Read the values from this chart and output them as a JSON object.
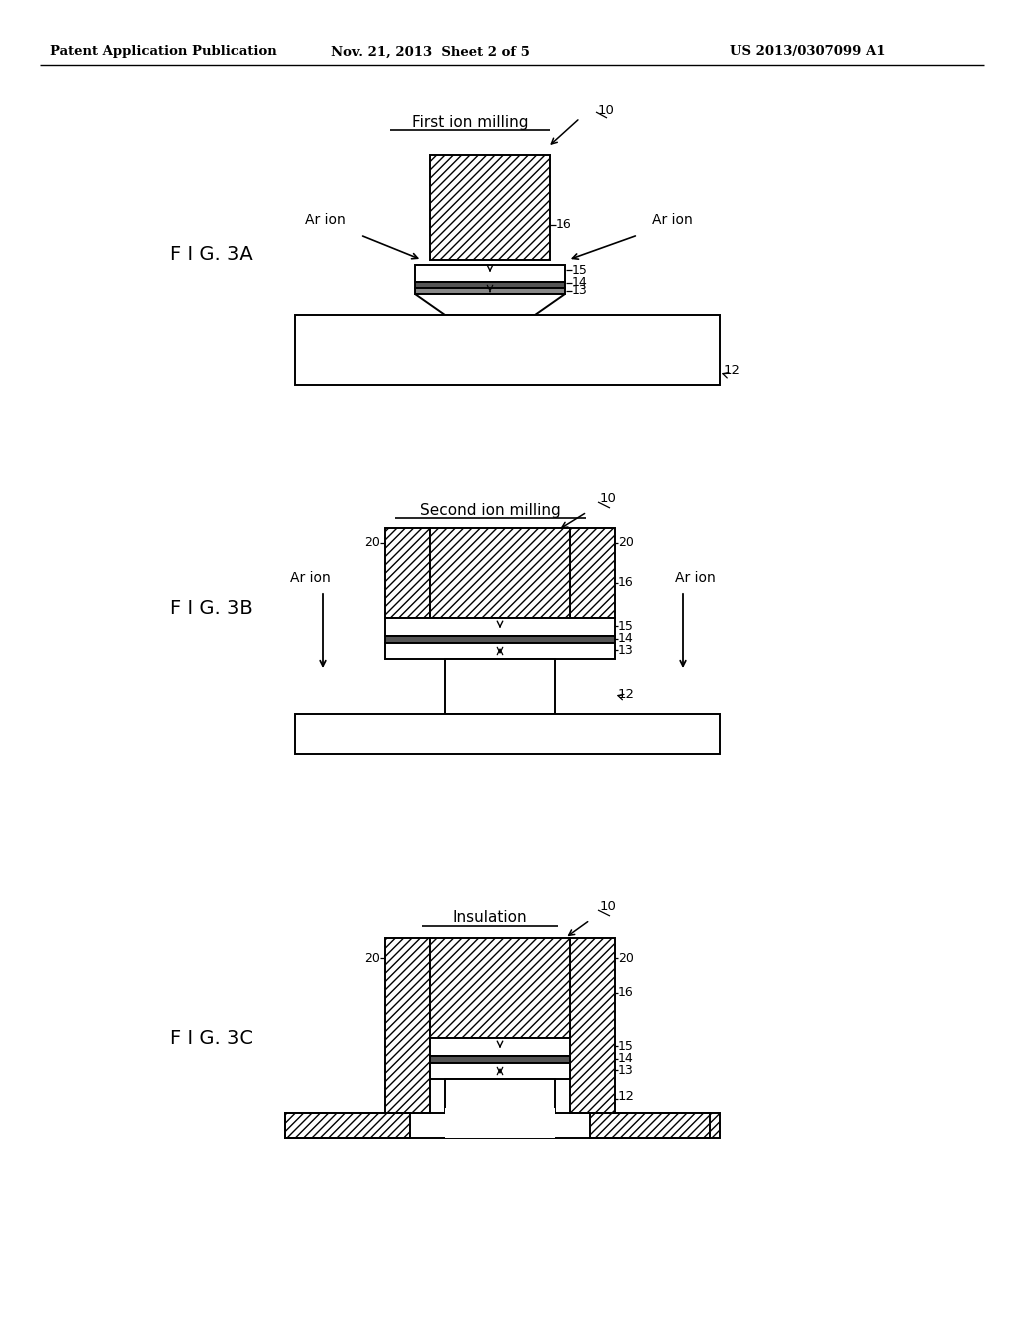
{
  "bg_color": "#ffffff",
  "lc": "#000000",
  "header_left": "Patent Application Publication",
  "header_mid": "Nov. 21, 2013  Sheet 2 of 5",
  "header_right": "US 2013/0307099 A1",
  "fig3a_label": "F I G. 3A",
  "fig3b_label": "F I G. 3B",
  "fig3c_label": "F I G. 3C",
  "label_10": "10",
  "label_12": "12",
  "label_13": "13",
  "label_14": "14",
  "label_15": "15",
  "label_16": "16",
  "label_20": "20",
  "label_arion": "Ar ion",
  "label_first": "First ion milling",
  "label_second": "Second ion milling",
  "label_insulation": "Insulation"
}
